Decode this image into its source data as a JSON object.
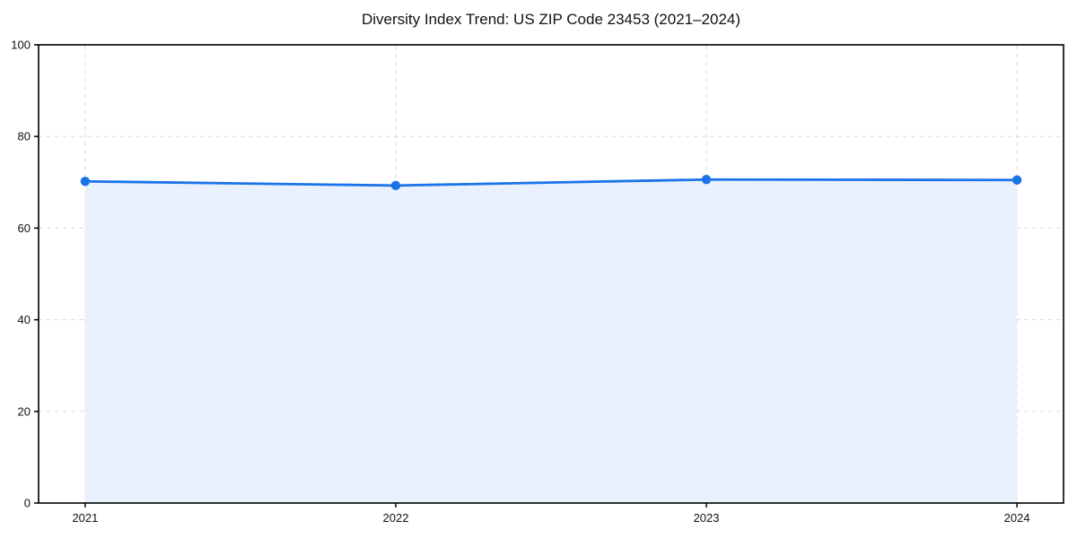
{
  "chart_data": {
    "type": "area",
    "title": "Diversity Index Trend: US ZIP Code 23453 (2021–2024)",
    "x": [
      2021,
      2022,
      2023,
      2024
    ],
    "x_tick_labels": [
      "2021",
      "2022",
      "2023",
      "2024"
    ],
    "series": [
      {
        "name": "Diversity Index",
        "values": [
          70.2,
          69.3,
          70.6,
          70.5
        ]
      }
    ],
    "xlabel": "",
    "ylabel": "",
    "xlim": [
      2020.85,
      2024.15
    ],
    "ylim": [
      0,
      100
    ],
    "yticks": [
      0,
      20,
      40,
      60,
      80,
      100
    ],
    "grid": true,
    "grid_style": "dashed",
    "legend_position": "none",
    "marker": "circle",
    "colors": {
      "line": "#1a73e8",
      "marker": "#1a73e8",
      "fill": "#e8f1fd",
      "grid": "#dcdcdc",
      "axis": "#000000",
      "text": "#111111",
      "background": "#ffffff"
    }
  }
}
